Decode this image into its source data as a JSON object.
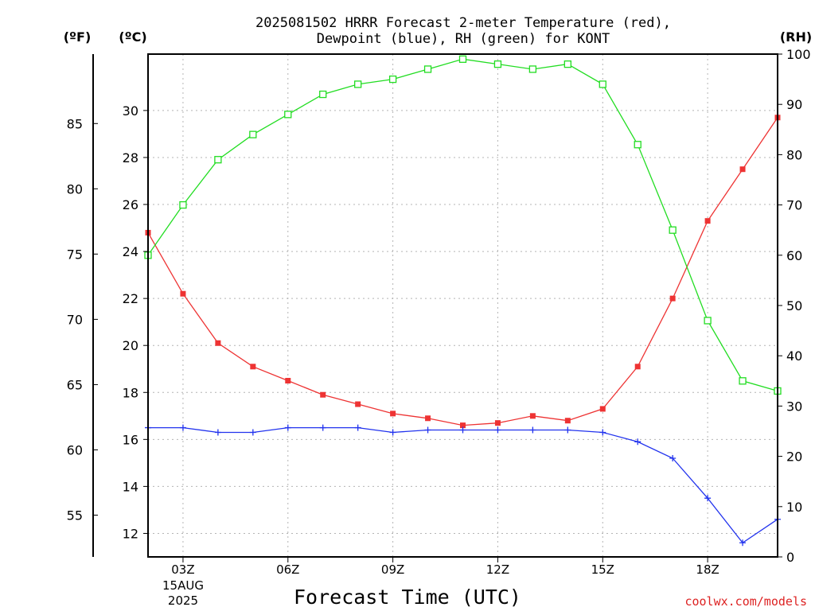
{
  "chart_data": {
    "type": "line",
    "title_line1": "2025081502 HRRR Forecast 2-meter Temperature (red),",
    "title_line2": "Dewpoint (blue), RH (green) for KONT",
    "xlabel": "Forecast Time (UTC)",
    "left_outer_axis_label": "(ºF)",
    "left_inner_axis_label": "(ºC)",
    "right_axis_label": "(RH)",
    "date_label_line1": "15AUG",
    "date_label_line2": "2025",
    "credit": "coolwx.com/models",
    "x_ticks": [
      "03Z",
      "06Z",
      "09Z",
      "12Z",
      "15Z",
      "18Z"
    ],
    "x_hours": [
      2,
      3,
      4,
      5,
      6,
      7,
      8,
      9,
      10,
      11,
      12,
      13,
      14,
      15,
      16,
      17,
      18,
      19,
      20
    ],
    "xlim": [
      2,
      20
    ],
    "celsius_ticks": [
      "12",
      "14",
      "16",
      "18",
      "20",
      "22",
      "24",
      "26",
      "28",
      "30"
    ],
    "ylim_c": [
      11.0,
      32.4
    ],
    "fahrenheit_ticks": [
      "55",
      "60",
      "65",
      "70",
      "75",
      "80",
      "85"
    ],
    "rh_ticks": [
      "0",
      "10",
      "20",
      "30",
      "40",
      "50",
      "60",
      "70",
      "80",
      "90",
      "100"
    ],
    "ylim_rh": [
      0,
      100
    ],
    "grid": true,
    "series": [
      {
        "name": "Temperature",
        "axis": "celsius",
        "color": "#ee3333",
        "marker": "filled-square",
        "values": [
          24.8,
          22.2,
          20.1,
          19.1,
          18.5,
          17.9,
          17.5,
          17.1,
          16.9,
          16.6,
          16.7,
          17.0,
          16.8,
          17.3,
          19.1,
          22.0,
          25.3,
          27.5,
          29.7
        ]
      },
      {
        "name": "Dewpoint",
        "axis": "celsius",
        "color": "#2233ee",
        "marker": "plus",
        "values": [
          16.5,
          16.5,
          16.3,
          16.3,
          16.5,
          16.5,
          16.5,
          16.3,
          16.4,
          16.4,
          16.4,
          16.4,
          16.4,
          16.3,
          15.9,
          15.2,
          13.5,
          11.6,
          12.6
        ]
      },
      {
        "name": "RH",
        "axis": "rh",
        "color": "#22dd22",
        "marker": "open-square",
        "values": [
          60,
          70,
          79,
          84,
          88,
          92,
          94,
          95,
          97,
          99,
          98,
          97,
          98,
          94,
          82,
          65,
          47,
          35,
          33
        ]
      }
    ]
  }
}
